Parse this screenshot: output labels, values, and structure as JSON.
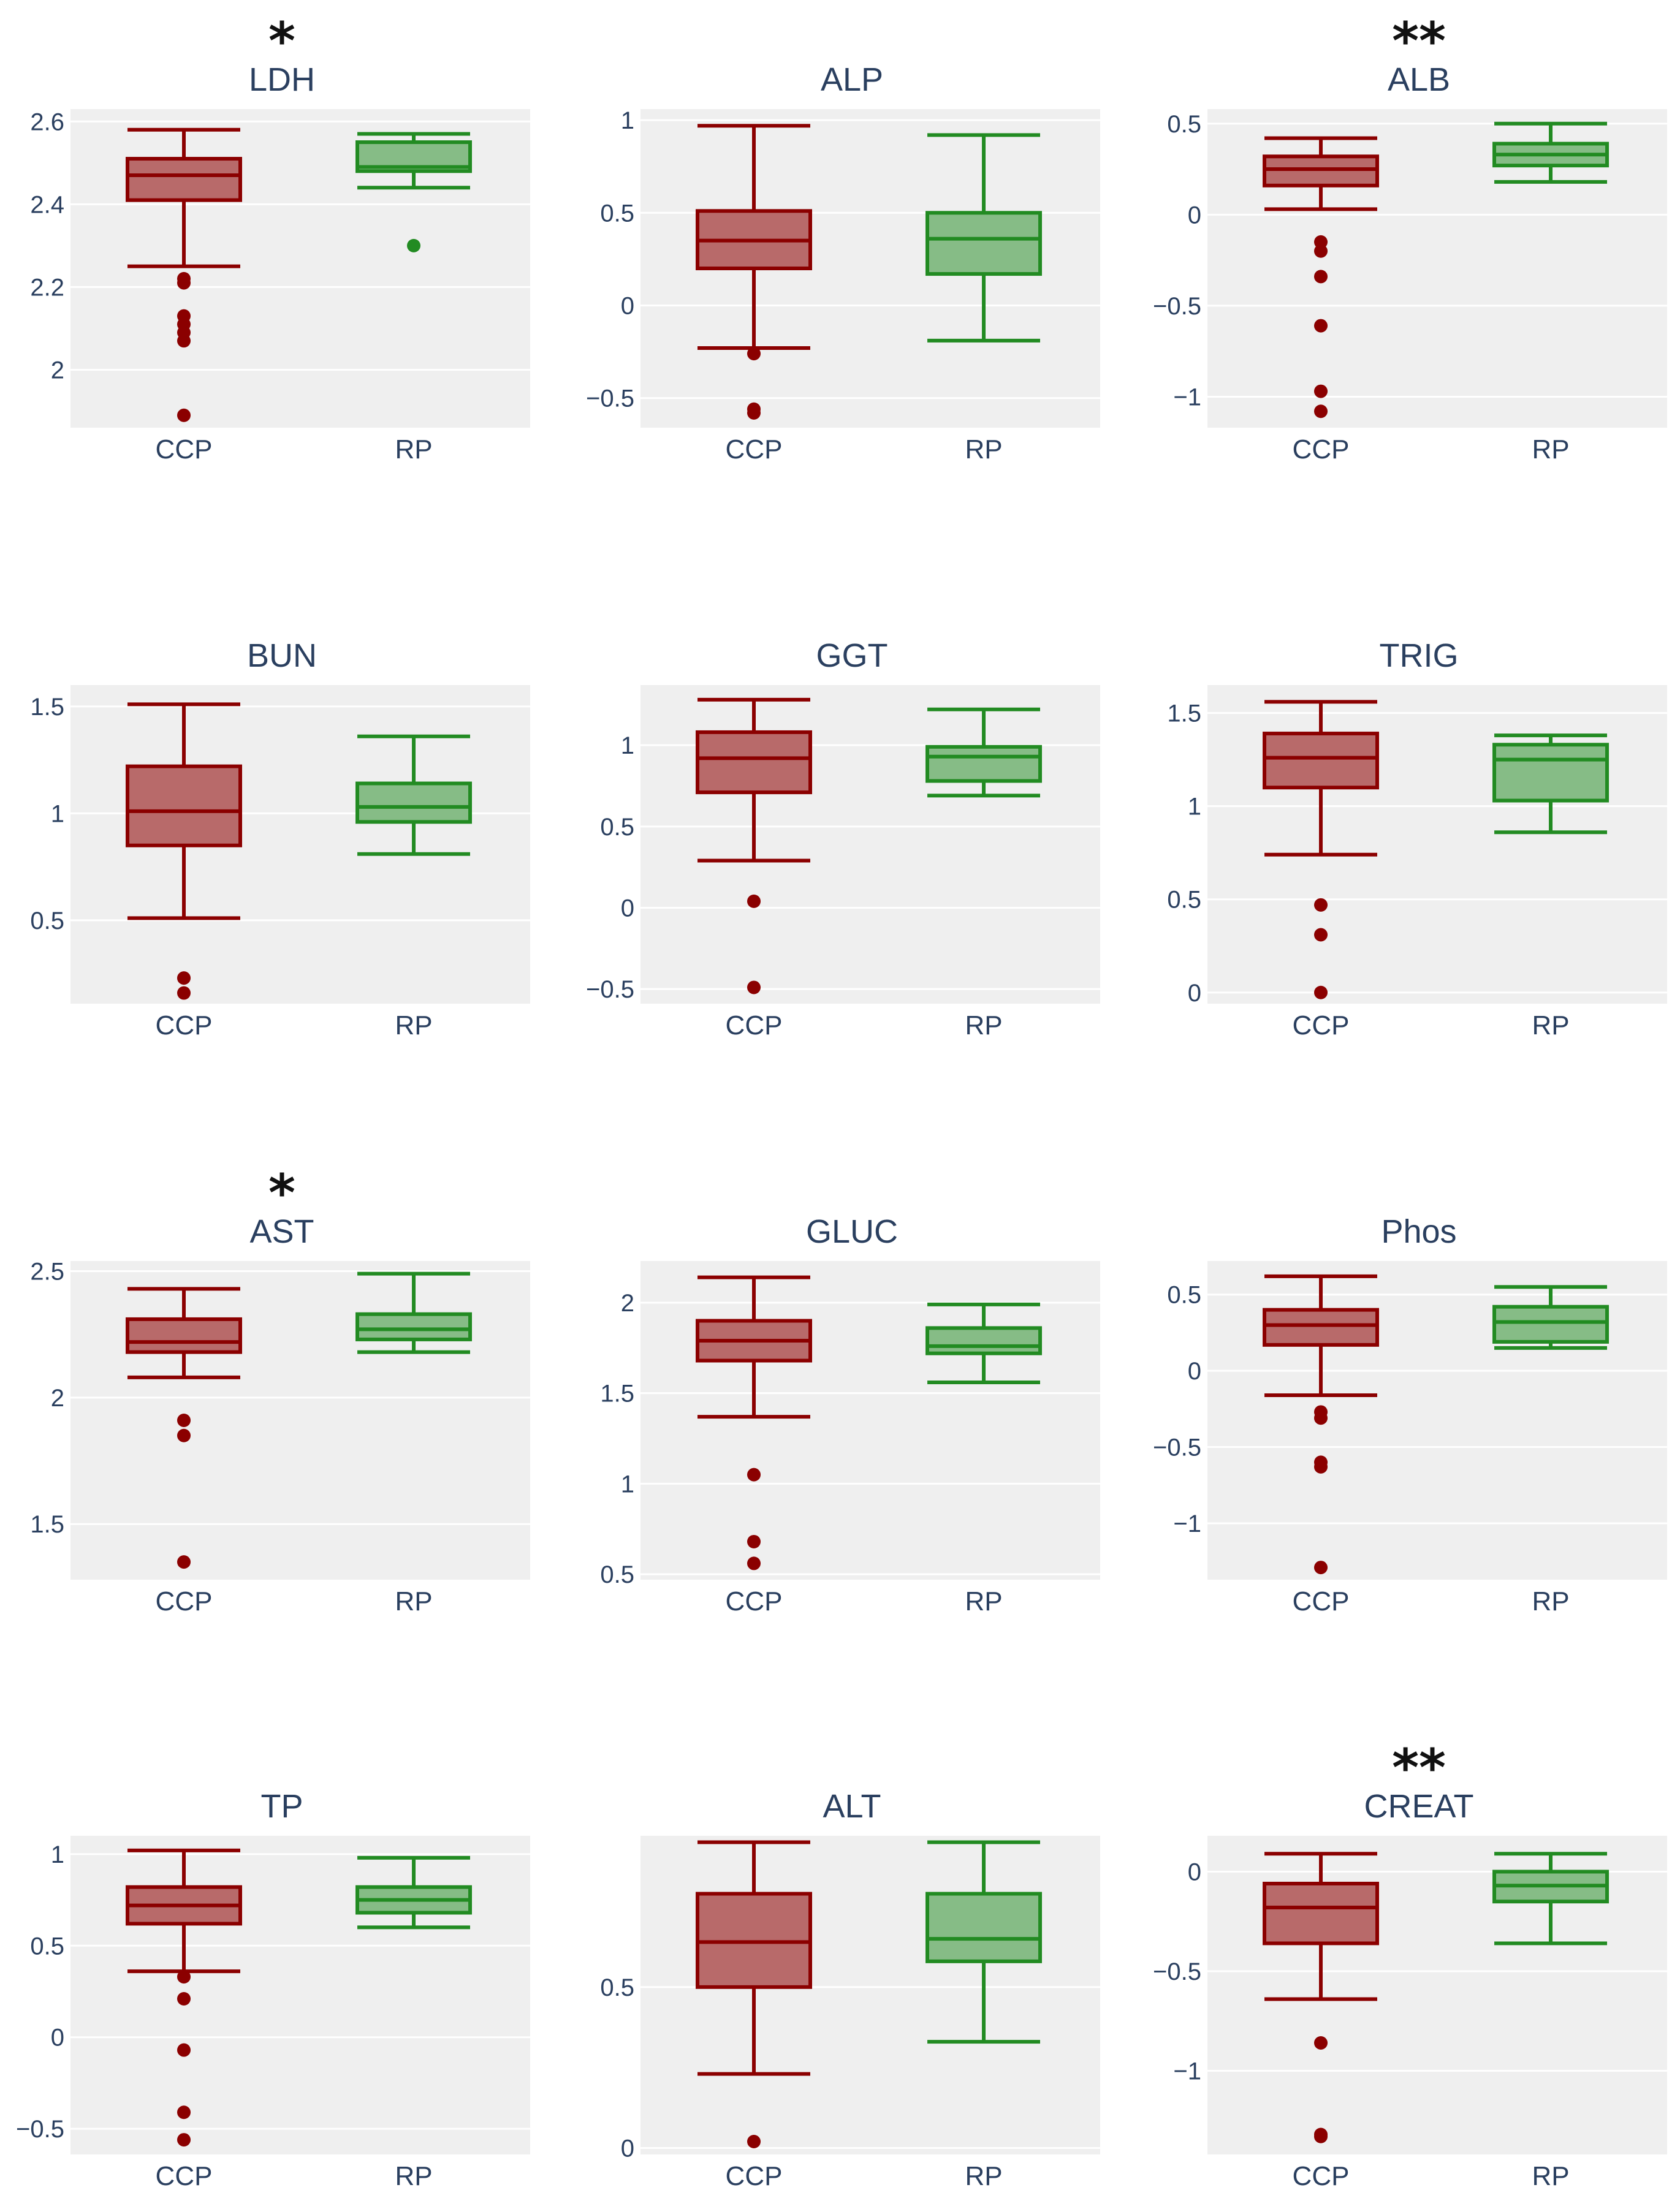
{
  "figure": {
    "colors": {
      "CCP": {
        "line": "#8b0000",
        "fill": "#b86a6a"
      },
      "RP": {
        "line": "#228b22",
        "fill": "#86bc86"
      },
      "plot_bg": "#efefef",
      "grid": "#ffffff",
      "text": "#2a3f5f"
    }
  },
  "chart_data": [
    {
      "type": "box",
      "title": "LDH",
      "significance": "*",
      "ylim": [
        1.86,
        2.63
      ],
      "yticks": [
        {
          "value": 2,
          "label": "2"
        },
        {
          "value": 2.2,
          "label": "2.2"
        },
        {
          "value": 2.4,
          "label": "2.4"
        },
        {
          "value": 2.6,
          "label": "2.6"
        }
      ],
      "categories": [
        "CCP",
        "RP"
      ],
      "boxes": [
        {
          "name": "CCP",
          "min": 2.25,
          "q1": 2.41,
          "median": 2.47,
          "q3": 2.51,
          "max": 2.58,
          "outliers": [
            2.22,
            2.21,
            2.13,
            2.11,
            2.09,
            2.07,
            1.89
          ]
        },
        {
          "name": "RP",
          "min": 2.44,
          "q1": 2.48,
          "median": 2.49,
          "q3": 2.55,
          "max": 2.57,
          "outliers": [
            2.3
          ]
        }
      ]
    },
    {
      "type": "box",
      "title": "ALP",
      "significance": "",
      "ylim": [
        -0.66,
        1.06
      ],
      "yticks": [
        {
          "value": -0.5,
          "label": "−0.5"
        },
        {
          "value": 0,
          "label": "0"
        },
        {
          "value": 0.5,
          "label": "0.5"
        },
        {
          "value": 1,
          "label": "1"
        }
      ],
      "categories": [
        "CCP",
        "RP"
      ],
      "boxes": [
        {
          "name": "CCP",
          "min": -0.23,
          "q1": 0.2,
          "median": 0.35,
          "q3": 0.51,
          "max": 0.97,
          "outliers": [
            -0.26,
            -0.56,
            -0.58
          ]
        },
        {
          "name": "RP",
          "min": -0.19,
          "q1": 0.17,
          "median": 0.36,
          "q3": 0.5,
          "max": 0.92,
          "outliers": []
        }
      ]
    },
    {
      "type": "box",
      "title": "ALB",
      "significance": "**",
      "ylim": [
        -1.17,
        0.58
      ],
      "yticks": [
        {
          "value": -1,
          "label": "−1"
        },
        {
          "value": -0.5,
          "label": "−0.5"
        },
        {
          "value": 0,
          "label": "0"
        },
        {
          "value": 0.5,
          "label": "0.5"
        }
      ],
      "categories": [
        "CCP",
        "RP"
      ],
      "boxes": [
        {
          "name": "CCP",
          "min": 0.03,
          "q1": 0.16,
          "median": 0.25,
          "q3": 0.32,
          "max": 0.42,
          "outliers": [
            -0.15,
            -0.2,
            -0.34,
            -0.61,
            -0.97,
            -1.08
          ]
        },
        {
          "name": "RP",
          "min": 0.18,
          "q1": 0.27,
          "median": 0.33,
          "q3": 0.39,
          "max": 0.5,
          "outliers": []
        }
      ]
    },
    {
      "type": "box",
      "title": "BUN",
      "significance": "",
      "ylim": [
        0.11,
        1.6
      ],
      "yticks": [
        {
          "value": 0.5,
          "label": "0.5"
        },
        {
          "value": 1,
          "label": "1"
        },
        {
          "value": 1.5,
          "label": "1.5"
        }
      ],
      "categories": [
        "CCP",
        "RP"
      ],
      "boxes": [
        {
          "name": "CCP",
          "min": 0.51,
          "q1": 0.85,
          "median": 1.01,
          "q3": 1.22,
          "max": 1.51,
          "outliers": [
            0.23,
            0.16
          ]
        },
        {
          "name": "RP",
          "min": 0.81,
          "q1": 0.96,
          "median": 1.03,
          "q3": 1.14,
          "max": 1.36,
          "outliers": []
        }
      ]
    },
    {
      "type": "box",
      "title": "GGT",
      "significance": "",
      "ylim": [
        -0.59,
        1.37
      ],
      "yticks": [
        {
          "value": -0.5,
          "label": "−0.5"
        },
        {
          "value": 0,
          "label": "0"
        },
        {
          "value": 0.5,
          "label": "0.5"
        },
        {
          "value": 1,
          "label": "1"
        }
      ],
      "categories": [
        "CCP",
        "RP"
      ],
      "boxes": [
        {
          "name": "CCP",
          "min": 0.29,
          "q1": 0.71,
          "median": 0.92,
          "q3": 1.08,
          "max": 1.28,
          "outliers": [
            0.04,
            -0.49
          ]
        },
        {
          "name": "RP",
          "min": 0.69,
          "q1": 0.78,
          "median": 0.93,
          "q3": 0.99,
          "max": 1.22,
          "outliers": []
        }
      ]
    },
    {
      "type": "box",
      "title": "TRIG",
      "significance": "",
      "ylim": [
        -0.06,
        1.65
      ],
      "yticks": [
        {
          "value": 0,
          "label": "0"
        },
        {
          "value": 0.5,
          "label": "0.5"
        },
        {
          "value": 1,
          "label": "1"
        },
        {
          "value": 1.5,
          "label": "1.5"
        }
      ],
      "categories": [
        "CCP",
        "RP"
      ],
      "boxes": [
        {
          "name": "CCP",
          "min": 0.74,
          "q1": 1.1,
          "median": 1.26,
          "q3": 1.39,
          "max": 1.56,
          "outliers": [
            0.47,
            0.31,
            0.0
          ]
        },
        {
          "name": "RP",
          "min": 0.86,
          "q1": 1.03,
          "median": 1.25,
          "q3": 1.33,
          "max": 1.38,
          "outliers": []
        }
      ]
    },
    {
      "type": "box",
      "title": "AST",
      "significance": "*",
      "ylim": [
        1.28,
        2.54
      ],
      "yticks": [
        {
          "value": 1.5,
          "label": "1.5"
        },
        {
          "value": 2,
          "label": "2"
        },
        {
          "value": 2.5,
          "label": "2.5"
        }
      ],
      "categories": [
        "CCP",
        "RP"
      ],
      "boxes": [
        {
          "name": "CCP",
          "min": 2.08,
          "q1": 2.18,
          "median": 2.22,
          "q3": 2.31,
          "max": 2.43,
          "outliers": [
            1.91,
            1.85,
            1.35
          ]
        },
        {
          "name": "RP",
          "min": 2.18,
          "q1": 2.23,
          "median": 2.27,
          "q3": 2.33,
          "max": 2.49,
          "outliers": []
        }
      ]
    },
    {
      "type": "box",
      "title": "GLUC",
      "significance": "",
      "ylim": [
        0.47,
        2.23
      ],
      "yticks": [
        {
          "value": 0.5,
          "label": "0.5"
        },
        {
          "value": 1,
          "label": "1"
        },
        {
          "value": 1.5,
          "label": "1.5"
        },
        {
          "value": 2,
          "label": "2"
        }
      ],
      "categories": [
        "CCP",
        "RP"
      ],
      "boxes": [
        {
          "name": "CCP",
          "min": 1.37,
          "q1": 1.68,
          "median": 1.79,
          "q3": 1.9,
          "max": 2.14,
          "outliers": [
            1.05,
            0.68,
            0.56
          ]
        },
        {
          "name": "RP",
          "min": 1.56,
          "q1": 1.72,
          "median": 1.76,
          "q3": 1.86,
          "max": 1.99,
          "outliers": []
        }
      ]
    },
    {
      "type": "box",
      "title": "Phos",
      "significance": "",
      "ylim": [
        -1.37,
        0.72
      ],
      "yticks": [
        {
          "value": -1,
          "label": "−1"
        },
        {
          "value": -0.5,
          "label": "−0.5"
        },
        {
          "value": 0,
          "label": "0"
        },
        {
          "value": 0.5,
          "label": "0.5"
        }
      ],
      "categories": [
        "CCP",
        "RP"
      ],
      "boxes": [
        {
          "name": "CCP",
          "min": -0.16,
          "q1": 0.17,
          "median": 0.3,
          "q3": 0.4,
          "max": 0.62,
          "outliers": [
            -0.27,
            -0.31,
            -0.6,
            -0.63,
            -1.29
          ]
        },
        {
          "name": "RP",
          "min": 0.15,
          "q1": 0.19,
          "median": 0.32,
          "q3": 0.42,
          "max": 0.55,
          "outliers": []
        }
      ]
    },
    {
      "type": "box",
      "title": "TP",
      "significance": "",
      "ylim": [
        -0.64,
        1.1
      ],
      "yticks": [
        {
          "value": -0.5,
          "label": "−0.5"
        },
        {
          "value": 0,
          "label": "0"
        },
        {
          "value": 0.5,
          "label": "0.5"
        },
        {
          "value": 1,
          "label": "1"
        }
      ],
      "categories": [
        "CCP",
        "RP"
      ],
      "boxes": [
        {
          "name": "CCP",
          "min": 0.36,
          "q1": 0.62,
          "median": 0.72,
          "q3": 0.82,
          "max": 1.02,
          "outliers": [
            0.33,
            0.21,
            -0.07,
            -0.41,
            -0.56
          ]
        },
        {
          "name": "RP",
          "min": 0.6,
          "q1": 0.68,
          "median": 0.75,
          "q3": 0.82,
          "max": 0.98,
          "outliers": []
        }
      ]
    },
    {
      "type": "box",
      "title": "ALT",
      "significance": "",
      "ylim": [
        -0.02,
        0.97
      ],
      "yticks": [
        {
          "value": 0,
          "label": "0"
        },
        {
          "value": 0.5,
          "label": "0.5"
        }
      ],
      "categories": [
        "CCP",
        "RP"
      ],
      "boxes": [
        {
          "name": "CCP",
          "min": 0.23,
          "q1": 0.5,
          "median": 0.64,
          "q3": 0.79,
          "max": 0.95,
          "outliers": [
            0.02
          ]
        },
        {
          "name": "RP",
          "min": 0.33,
          "q1": 0.58,
          "median": 0.65,
          "q3": 0.79,
          "max": 0.95,
          "outliers": []
        }
      ]
    },
    {
      "type": "box",
      "title": "CREAT",
      "significance": "**",
      "ylim": [
        -1.42,
        0.18
      ],
      "yticks": [
        {
          "value": -1,
          "label": "−1"
        },
        {
          "value": -0.5,
          "label": "−0.5"
        },
        {
          "value": 0,
          "label": "0"
        }
      ],
      "categories": [
        "CCP",
        "RP"
      ],
      "boxes": [
        {
          "name": "CCP",
          "min": -0.64,
          "q1": -0.36,
          "median": -0.18,
          "q3": -0.06,
          "max": 0.09,
          "outliers": [
            -0.86,
            -1.32,
            -1.33
          ]
        },
        {
          "name": "RP",
          "min": -0.36,
          "q1": -0.15,
          "median": -0.07,
          "q3": 0.0,
          "max": 0.09,
          "outliers": []
        }
      ]
    }
  ]
}
